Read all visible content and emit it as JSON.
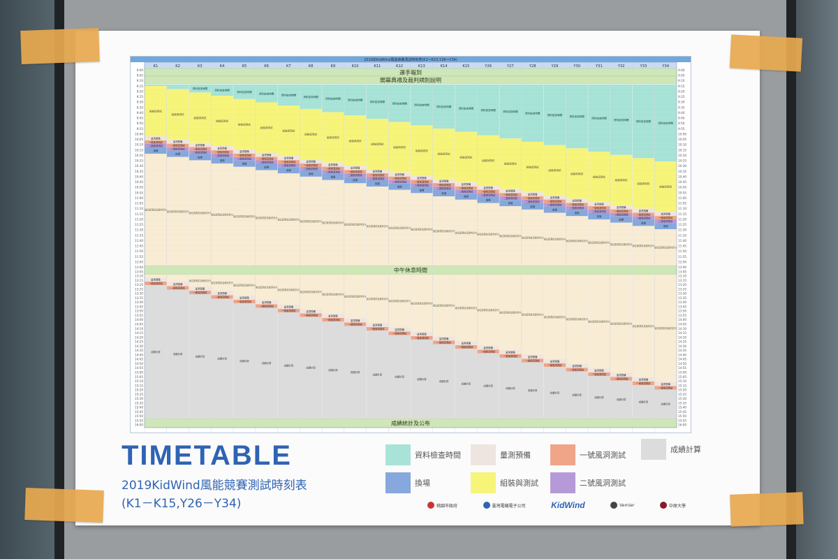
{
  "poster": {
    "title": "TIMETABLE",
    "subtitle": "2019KidWind風能競賽測試時刻表",
    "range": "(K1－K15,Y26－Y34)"
  },
  "chart": {
    "header": "2019年KidWind風能競賽測試時刻表(K1～K15,Y26～Y34)",
    "teams": [
      "K1",
      "K2",
      "K3",
      "K4",
      "K5",
      "K6",
      "K7",
      "K8",
      "K9",
      "K10",
      "K11",
      "K12",
      "K13",
      "K14",
      "K15",
      "Y26",
      "Y27",
      "Y28",
      "Y29",
      "Y30",
      "Y31",
      "Y32",
      "Y33",
      "Y34"
    ],
    "banners": {
      "checkin": "選手報到",
      "opening": "開幕典禮及裁判規則說明",
      "lunch": "中午休息時間",
      "results": "成績統計及公布"
    },
    "times_top": [
      "9:00",
      "9:05",
      "9:10",
      "9:15",
      "9:20",
      "9:25",
      "9:30",
      "9:35",
      "9:40",
      "9:45",
      "9:50",
      "9:55",
      "10:00",
      "10:05",
      "10:10",
      "10:15",
      "10:20",
      "10:25",
      "10:30",
      "10:35",
      "10:40",
      "10:45",
      "10:50",
      "10:55",
      "11:00",
      "11:05",
      "11:10",
      "11:15",
      "11:20",
      "11:25",
      "11:30",
      "11:35",
      "11:40",
      "11:45",
      "11:50",
      "11:55",
      "12:00"
    ],
    "times_bottom": [
      "13:00",
      "13:05",
      "13:10",
      "13:15",
      "13:20",
      "13:25",
      "13:30",
      "13:35",
      "13:40",
      "13:45",
      "13:50",
      "13:55",
      "14:00",
      "14:05",
      "14:10",
      "14:15",
      "14:20",
      "14:25",
      "14:30",
      "14:35",
      "14:40",
      "14:45",
      "14:50",
      "14:55",
      "15:00",
      "15:05",
      "15:10",
      "15:15",
      "15:20",
      "15:25",
      "15:30",
      "15:35",
      "15:40",
      "15:45",
      "15:50",
      "15:55",
      "16:00"
    ],
    "cell_labels": {
      "check": "資料檢查時間",
      "assemble": "組裝與測試",
      "measure": "量測預備",
      "tunnel1": "一號風洞測試",
      "tunnel2": "二號風洞測試",
      "switch": "換場",
      "standby": "適位與測試及裁判評分",
      "score": "成績計算"
    }
  },
  "legend": [
    {
      "label": "資料檢查時間",
      "color": "#a7e3d6"
    },
    {
      "label": "量測預備",
      "color": "#efe5e0"
    },
    {
      "label": "一號風洞測試",
      "color": "#f0a488"
    },
    {
      "label": "成績計算",
      "color": "#dcdcdc"
    },
    {
      "label": "換場",
      "color": "#86a8dc"
    },
    {
      "label": "組裝與測試",
      "color": "#f7f47a"
    },
    {
      "label": "二號風洞測試",
      "color": "#b69ad8"
    }
  ],
  "sponsors": [
    "桃園市政府",
    "臺灣電機電子公司",
    "KidWind",
    "Vernier",
    "中原大學"
  ],
  "colors": {
    "check": "#a7e3d6",
    "assemble": "#f7f47a",
    "measure": "#efe5e0",
    "tunnel1": "#f0a488",
    "tunnel2": "#b69ad8",
    "switch": "#86a8dc",
    "standby": "#f8ecd4",
    "score": "#dcdcdc",
    "banner": "#cfe6b8",
    "header": "#6fa8dc",
    "title_blue": "#2f63b3"
  }
}
